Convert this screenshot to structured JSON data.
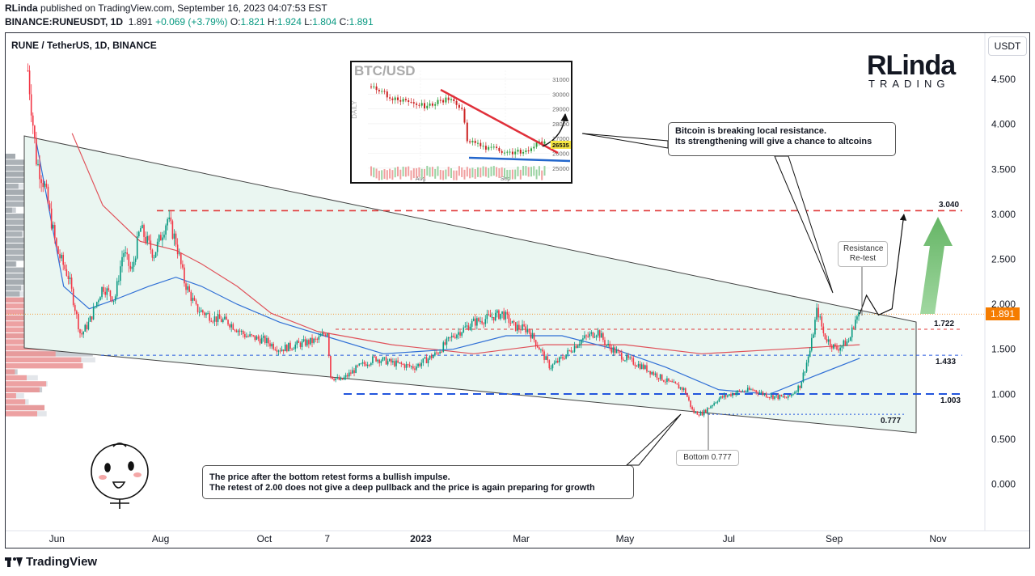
{
  "header": {
    "author": "RLinda",
    "published_text": "published on TradingView.com, September 16, 2023 04:07:53 EST",
    "symbol": "BINANCE:RUNEUSDT, 1D",
    "last": "1.891",
    "change": "+0.069 (+3.79%)",
    "o_label": "O:",
    "o": "1.821",
    "h_label": "H:",
    "h": "1.924",
    "l_label": "L:",
    "l": "1.804",
    "c_label": "C:",
    "c": "1.891"
  },
  "legend_title": "RUNE / TetherUS, 1D, BINANCE",
  "currency_button": "USDT",
  "logo": {
    "line1": "RLinda",
    "line2": "TRADING"
  },
  "inset": {
    "title": "BTC/USD",
    "side_label": "DAILY",
    "ticks": [
      "31000",
      "30000",
      "29000",
      "28000",
      "27000",
      "26000",
      "25000"
    ],
    "price_tag": "26535",
    "x_ticks": [
      "Aug",
      "Sep"
    ]
  },
  "notes": {
    "bitcoin_line1": "Bitcoin is breaking local resistance.",
    "bitcoin_line2": "Its strengthening will give a chance to altcoins",
    "price_line1": "The price after the bottom retest forms a bullish impulse.",
    "price_line2": "The retest of 2.00 does not give a deep pullback and the price is again preparing for growth",
    "resistance_line1": "Resistance",
    "resistance_line2": "Re-test",
    "bottom": "Bottom 0.777"
  },
  "level_labels": {
    "l3040": "3.040",
    "l1722": "1.722",
    "l1433": "1.433",
    "l1003": "1.003",
    "l0777": "0.777"
  },
  "current_price_tag": "1.891",
  "footer": {
    "brand": "TradingView"
  },
  "colors": {
    "up": "#089981",
    "down": "#f23645",
    "ma_red": "#e0525a",
    "ma_blue": "#2f6fd6",
    "dash_red": "#e03a3a",
    "dash_blue": "#2255dd",
    "arrow_green": "#5cb85c"
  },
  "chart_data": {
    "type": "line",
    "title": "RUNE / TetherUS, 1D, BINANCE",
    "x_ticks": [
      "Jun",
      "Aug",
      "Oct",
      "7",
      "2023",
      "Mar",
      "May",
      "Jul",
      "Sep",
      "Nov"
    ],
    "y_ticks": [
      "4.500",
      "4.000",
      "3.500",
      "3.000",
      "2.500",
      "2.000",
      "1.500",
      "1.000",
      "0.500",
      "0.000"
    ],
    "ylim": [
      -0.5,
      4.9
    ],
    "levels": [
      3.04,
      1.722,
      1.433,
      1.003,
      0.777
    ],
    "series": [
      {
        "values": [
          [
            "2022-05-15",
            4.6
          ],
          [
            "2022-05-20",
            3.6
          ],
          [
            "2022-05-25",
            3.3
          ],
          [
            "2022-06-01",
            2.6
          ],
          [
            "2022-06-08",
            2.3
          ],
          [
            "2022-06-15",
            1.65
          ],
          [
            "2022-06-20",
            1.8
          ],
          [
            "2022-06-28",
            2.2
          ],
          [
            "2022-07-05",
            2.05
          ],
          [
            "2022-07-10",
            2.6
          ],
          [
            "2022-07-15",
            2.35
          ],
          [
            "2022-07-20",
            2.85
          ],
          [
            "2022-07-28",
            2.55
          ],
          [
            "2022-08-05",
            2.95
          ],
          [
            "2022-08-10",
            2.7
          ],
          [
            "2022-08-15",
            2.25
          ],
          [
            "2022-08-22",
            1.95
          ],
          [
            "2022-09-01",
            1.85
          ],
          [
            "2022-09-10",
            1.8
          ],
          [
            "2022-09-20",
            1.65
          ],
          [
            "2022-10-01",
            1.6
          ],
          [
            "2022-10-10",
            1.5
          ],
          [
            "2022-10-20",
            1.55
          ],
          [
            "2022-11-01",
            1.6
          ],
          [
            "2022-11-07",
            1.7
          ],
          [
            "2022-11-09",
            1.2
          ],
          [
            "2022-11-15",
            1.15
          ],
          [
            "2022-11-25",
            1.3
          ],
          [
            "2022-12-05",
            1.4
          ],
          [
            "2022-12-15",
            1.35
          ],
          [
            "2022-12-28",
            1.3
          ],
          [
            "2023-01-10",
            1.45
          ],
          [
            "2023-01-20",
            1.65
          ],
          [
            "2023-02-01",
            1.8
          ],
          [
            "2023-02-10",
            1.85
          ],
          [
            "2023-02-18",
            1.9
          ],
          [
            "2023-02-25",
            1.75
          ],
          [
            "2023-03-05",
            1.72
          ],
          [
            "2023-03-12",
            1.5
          ],
          [
            "2023-03-18",
            1.3
          ],
          [
            "2023-03-25",
            1.4
          ],
          [
            "2023-04-05",
            1.6
          ],
          [
            "2023-04-15",
            1.7
          ],
          [
            "2023-04-20",
            1.55
          ],
          [
            "2023-05-01",
            1.4
          ],
          [
            "2023-05-12",
            1.3
          ],
          [
            "2023-05-25",
            1.15
          ],
          [
            "2023-06-05",
            1.05
          ],
          [
            "2023-06-10",
            0.8
          ],
          [
            "2023-06-15",
            0.78
          ],
          [
            "2023-06-25",
            0.95
          ],
          [
            "2023-07-05",
            1.02
          ],
          [
            "2023-07-15",
            1.05
          ],
          [
            "2023-07-25",
            0.98
          ],
          [
            "2023-08-05",
            0.96
          ],
          [
            "2023-08-12",
            1.1
          ],
          [
            "2023-08-18",
            1.5
          ],
          [
            "2023-08-22",
            1.95
          ],
          [
            "2023-08-26",
            1.65
          ],
          [
            "2023-09-02",
            1.5
          ],
          [
            "2023-09-10",
            1.6
          ],
          [
            "2023-09-13",
            1.82
          ],
          [
            "2023-09-16",
            1.891
          ]
        ]
      },
      {
        "values": [
          [
            "2022-06-10",
            3.9
          ],
          [
            "2022-06-28",
            3.1
          ],
          [
            "2022-07-20",
            2.7
          ],
          [
            "2022-08-10",
            2.6
          ],
          [
            "2022-08-25",
            2.45
          ],
          [
            "2022-09-15",
            2.2
          ],
          [
            "2022-10-05",
            1.9
          ],
          [
            "2022-11-01",
            1.7
          ],
          [
            "2022-12-15",
            1.55
          ],
          [
            "2023-02-01",
            1.45
          ],
          [
            "2023-03-15",
            1.55
          ],
          [
            "2023-05-01",
            1.55
          ],
          [
            "2023-06-15",
            1.45
          ],
          [
            "2023-08-01",
            1.5
          ],
          [
            "2023-09-16",
            1.55
          ]
        ]
      },
      {
        "values": [
          [
            "2022-05-20",
            3.8
          ],
          [
            "2022-06-05",
            2.2
          ],
          [
            "2022-06-20",
            1.95
          ],
          [
            "2022-07-05",
            2.05
          ],
          [
            "2022-07-25",
            2.2
          ],
          [
            "2022-08-10",
            2.3
          ],
          [
            "2022-08-25",
            2.2
          ],
          [
            "2022-09-15",
            2.0
          ],
          [
            "2022-10-10",
            1.8
          ],
          [
            "2022-11-05",
            1.65
          ],
          [
            "2022-12-10",
            1.45
          ],
          [
            "2023-01-20",
            1.5
          ],
          [
            "2023-02-20",
            1.65
          ],
          [
            "2023-03-25",
            1.65
          ],
          [
            "2023-04-25",
            1.5
          ],
          [
            "2023-05-25",
            1.3
          ],
          [
            "2023-06-25",
            1.05
          ],
          [
            "2023-07-25",
            1.0
          ],
          [
            "2023-08-20",
            1.2
          ],
          [
            "2023-09-16",
            1.4
          ]
        ]
      }
    ],
    "projection": [
      [
        "2023-09-16",
        1.891
      ],
      [
        "2023-09-20",
        2.1
      ],
      [
        "2023-09-27",
        1.88
      ],
      [
        "2023-10-05",
        1.95
      ],
      [
        "2023-10-12",
        3.0
      ]
    ]
  }
}
